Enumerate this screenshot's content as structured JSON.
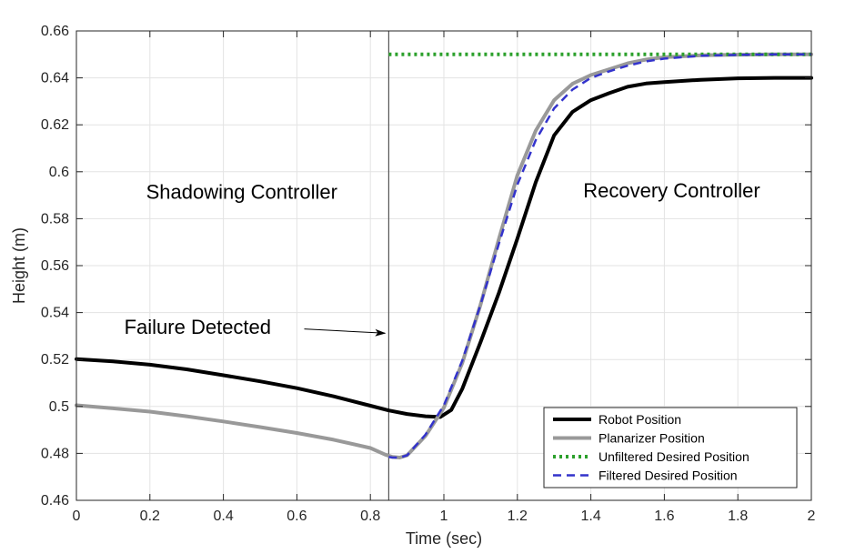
{
  "chart_data": {
    "type": "line",
    "title": "",
    "xlabel": "Time (sec)",
    "ylabel": "Height (m)",
    "xlim": [
      0,
      2
    ],
    "ylim": [
      0.46,
      0.66
    ],
    "xticks": [
      0,
      0.2,
      0.4,
      0.6,
      0.8,
      1,
      1.2,
      1.4,
      1.6,
      1.8,
      2
    ],
    "yticks": [
      0.46,
      0.48,
      0.5,
      0.52,
      0.54,
      0.56,
      0.58,
      0.6,
      0.62,
      0.64,
      0.66
    ],
    "xtick_labels": [
      "0",
      "0.2",
      "0.4",
      "0.6",
      "0.8",
      "1",
      "1.2",
      "1.4",
      "1.6",
      "1.8",
      "2"
    ],
    "ytick_labels": [
      "0.46",
      "0.48",
      "0.5",
      "0.52",
      "0.54",
      "0.56",
      "0.58",
      "0.6",
      "0.62",
      "0.64",
      "0.66"
    ],
    "grid": true,
    "legend_position": "bottom-right",
    "series": [
      {
        "name": "Robot Position",
        "color": "#000000",
        "style": "solid",
        "x": [
          0,
          0.1,
          0.2,
          0.3,
          0.4,
          0.5,
          0.6,
          0.7,
          0.8,
          0.85,
          0.9,
          0.95,
          0.99,
          1.02,
          1.05,
          1.1,
          1.15,
          1.2,
          1.25,
          1.3,
          1.35,
          1.4,
          1.45,
          1.5,
          1.55,
          1.6,
          1.7,
          1.8,
          1.9,
          2.0
        ],
        "y": [
          0.5202,
          0.5192,
          0.5178,
          0.5158,
          0.5133,
          0.5107,
          0.5078,
          0.5043,
          0.5003,
          0.4983,
          0.4968,
          0.4958,
          0.4955,
          0.4985,
          0.5075,
          0.5275,
          0.5485,
          0.5715,
          0.5955,
          0.6155,
          0.6255,
          0.6305,
          0.6335,
          0.6362,
          0.6376,
          0.6382,
          0.6392,
          0.6398,
          0.64,
          0.64
        ]
      },
      {
        "name": "Planarizer Position",
        "color": "#999999",
        "style": "solid",
        "x": [
          0,
          0.1,
          0.2,
          0.3,
          0.4,
          0.5,
          0.6,
          0.7,
          0.8,
          0.84,
          0.86,
          0.88,
          0.9,
          0.95,
          1.0,
          1.05,
          1.1,
          1.15,
          1.2,
          1.25,
          1.3,
          1.35,
          1.4,
          1.45,
          1.5,
          1.55,
          1.6,
          1.7,
          1.8,
          1.9,
          2.0
        ],
        "y": [
          0.5005,
          0.4992,
          0.4978,
          0.4958,
          0.4936,
          0.4912,
          0.4887,
          0.4858,
          0.4823,
          0.4795,
          0.4785,
          0.4782,
          0.4792,
          0.4875,
          0.4995,
          0.5185,
          0.5435,
          0.5715,
          0.5985,
          0.6175,
          0.6305,
          0.6375,
          0.6412,
          0.6437,
          0.6462,
          0.6478,
          0.6488,
          0.6496,
          0.6499,
          0.65,
          0.65
        ]
      },
      {
        "name": "Unfiltered Desired Position",
        "color": "#2ca02c",
        "style": "dotted",
        "x": [
          0.85,
          2.0
        ],
        "y": [
          0.65,
          0.65
        ]
      },
      {
        "name": "Filtered Desired Position",
        "color": "#3333cc",
        "style": "dashed",
        "x": [
          0.85,
          0.86,
          0.88,
          0.9,
          0.95,
          1.0,
          1.05,
          1.1,
          1.15,
          1.2,
          1.25,
          1.3,
          1.35,
          1.4,
          1.45,
          1.5,
          1.55,
          1.6,
          1.7,
          1.8,
          1.9,
          2.0
        ],
        "y": [
          0.4785,
          0.4782,
          0.4782,
          0.4792,
          0.488,
          0.5005,
          0.5195,
          0.5435,
          0.5695,
          0.5945,
          0.6135,
          0.627,
          0.635,
          0.64,
          0.6428,
          0.6452,
          0.647,
          0.6482,
          0.6494,
          0.6498,
          0.65,
          0.65
        ]
      }
    ],
    "vlines": [
      {
        "x": 0.85,
        "color": "#555555"
      }
    ],
    "annotations": [
      {
        "text": "Shadowing Controller",
        "x": 0.45,
        "y": 0.5885
      },
      {
        "text": "Recovery Controller",
        "x": 1.62,
        "y": 0.589
      },
      {
        "text": "Failure Detected",
        "x": 0.33,
        "y": 0.531
      }
    ],
    "arrow": {
      "from": [
        0.62,
        0.533
      ],
      "to": [
        0.84,
        0.5312
      ]
    }
  }
}
